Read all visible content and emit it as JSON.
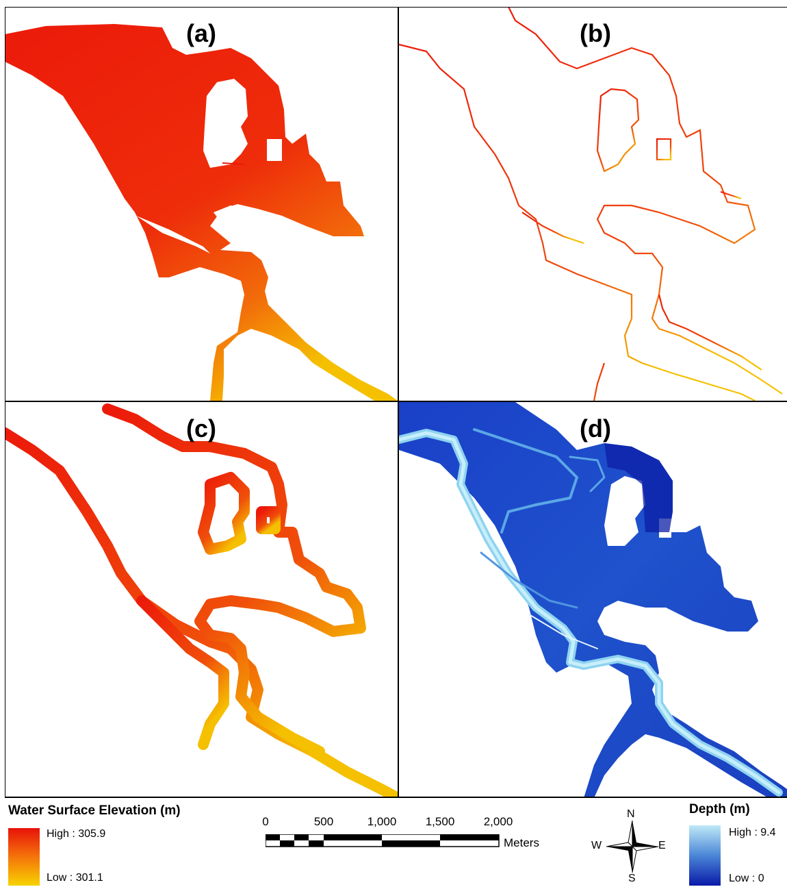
{
  "panels": [
    {
      "label": "(a)"
    },
    {
      "label": "(b)"
    },
    {
      "label": "(c)"
    },
    {
      "label": "(d)"
    }
  ],
  "wse_legend": {
    "title": "Water Surface Elevation (m)",
    "high": "High : 305.9",
    "low": "Low : 301.1",
    "colors": {
      "high": "#e8120a",
      "low": "#f6d300"
    }
  },
  "depth_legend": {
    "title": "Depth (m)",
    "high": "High : 9.4",
    "low": "Low : 0",
    "colors": {
      "high": "#bfe9f7",
      "low": "#0a1aa8"
    }
  },
  "scale_bar": {
    "ticks": [
      "0",
      "500",
      "1,000",
      "1,500",
      "2,000"
    ],
    "unit": "Meters"
  },
  "north_arrow": {
    "n": "N",
    "s": "S",
    "e": "E",
    "w": "W"
  }
}
